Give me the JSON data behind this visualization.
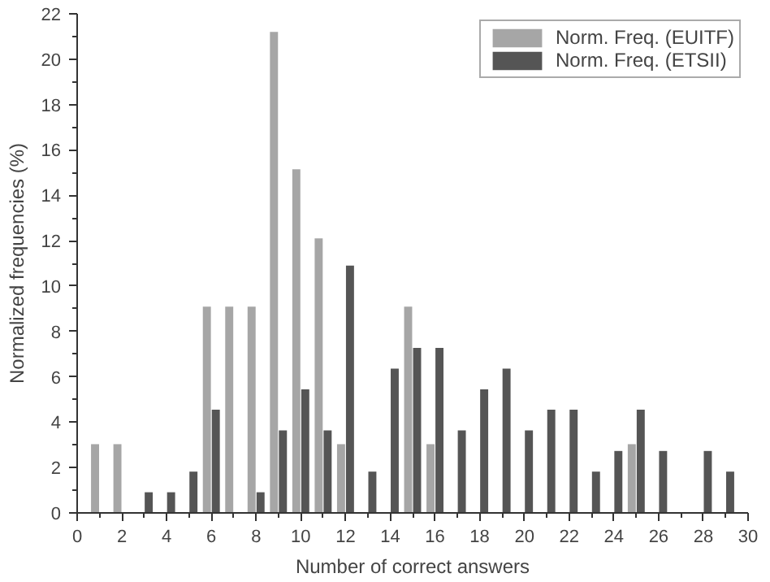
{
  "chart_data": {
    "type": "bar",
    "xlabel": "Number of correct answers",
    "ylabel": "Normalized frequencies (%)",
    "xlim": [
      0,
      30
    ],
    "xticks": [
      0,
      2,
      4,
      6,
      8,
      10,
      12,
      14,
      16,
      18,
      20,
      22,
      24,
      26,
      28,
      30
    ],
    "ylim": [
      0,
      22
    ],
    "yticks": [
      0,
      2,
      4,
      6,
      8,
      10,
      12,
      14,
      16,
      18,
      20,
      22
    ],
    "grid": false,
    "legend": "top right",
    "series": [
      {
        "name": "Norm. Freq. (EUITF)",
        "color": "#a6a6a6",
        "x": [
          1,
          2,
          6,
          7,
          8,
          9,
          10,
          11,
          12,
          15,
          16,
          25
        ],
        "values": [
          3.03,
          3.03,
          9.09,
          9.09,
          9.09,
          21.2,
          15.15,
          12.1,
          3.03,
          9.09,
          3.03,
          3.03
        ]
      },
      {
        "name": "Norm. Freq. (ETSII)",
        "color": "#555555",
        "x": [
          3,
          4,
          5,
          6,
          8,
          9,
          10,
          11,
          12,
          13,
          14,
          15,
          16,
          17,
          18,
          19,
          20,
          21,
          22,
          23,
          24,
          25,
          26,
          28,
          29
        ],
        "values": [
          0.91,
          0.91,
          1.82,
          4.55,
          0.91,
          3.64,
          5.45,
          3.64,
          10.9,
          1.82,
          6.36,
          7.27,
          7.27,
          3.64,
          5.45,
          6.36,
          3.64,
          4.55,
          4.55,
          1.82,
          2.73,
          4.55,
          2.73,
          2.73,
          1.82
        ]
      }
    ]
  }
}
